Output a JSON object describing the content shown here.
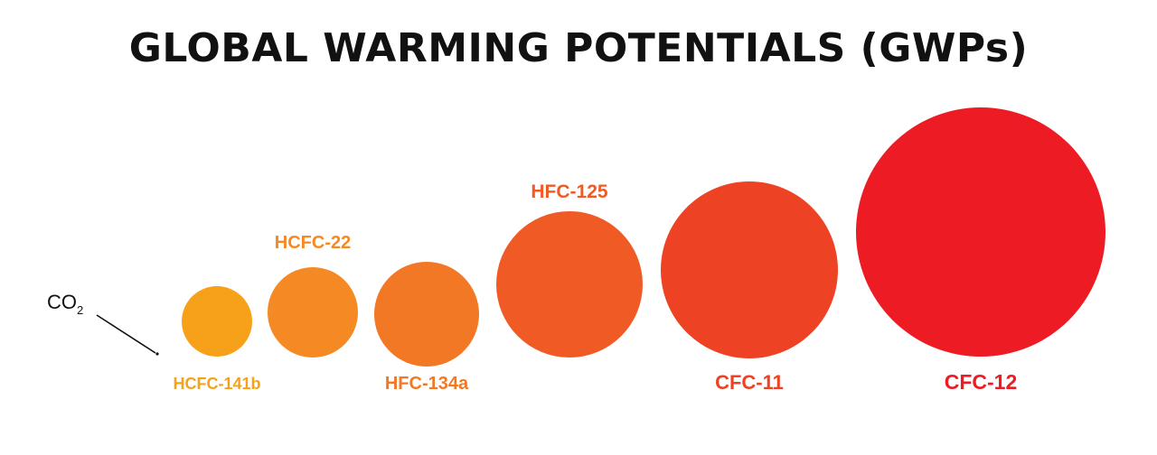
{
  "chart_data": {
    "type": "bubble",
    "title": "GLOBAL WARMING POTENTIALS (GWPs)",
    "reference": {
      "label": "CO",
      "subscript": "2"
    },
    "items": [
      {
        "label": "HCFC-141b",
        "color": "#F7A11A",
        "label_position": "below"
      },
      {
        "label": "HCFC-22",
        "color": "#F58A24",
        "label_position": "above"
      },
      {
        "label": "HFC-134a",
        "color": "#F37826",
        "label_position": "below"
      },
      {
        "label": "HFC-125",
        "color": "#F05A25",
        "label_position": "above"
      },
      {
        "label": "CFC-11",
        "color": "#EE4224",
        "label_position": "below"
      },
      {
        "label": "CFC-12",
        "color": "#ED1C24",
        "label_position": "below"
      }
    ]
  }
}
